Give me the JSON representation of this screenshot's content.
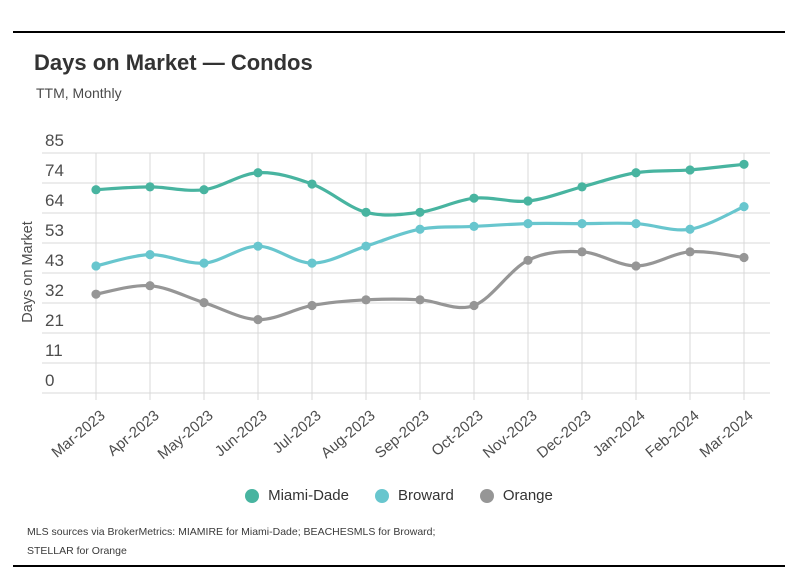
{
  "header": {
    "title": "Days on Market — Condos",
    "subtitle": "TTM, Monthly"
  },
  "chart_data": {
    "type": "line",
    "title": "Days on Market — Condos",
    "subtitle": "TTM, Monthly",
    "xlabel": "",
    "ylabel": "Days on Market",
    "ylim": [
      0,
      85
    ],
    "grid": true,
    "legend_position": "bottom-center",
    "y_tick_labels": [
      "0",
      "11",
      "21",
      "32",
      "43",
      "53",
      "64",
      "74",
      "85"
    ],
    "categories": [
      "Mar-2023",
      "Apr-2023",
      "May-2023",
      "Jun-2023",
      "Jul-2023",
      "Aug-2023",
      "Sep-2023",
      "Oct-2023",
      "Nov-2023",
      "Dec-2023",
      "Jan-2024",
      "Feb-2024",
      "Mar-2024"
    ],
    "series": [
      {
        "name": "Miami-Dade",
        "color": "#48b4a0",
        "values": [
          72,
          73,
          72,
          78,
          74,
          64,
          64,
          69,
          68,
          73,
          78,
          79,
          81
        ]
      },
      {
        "name": "Broward",
        "color": "#68c6ce",
        "values": [
          45,
          49,
          46,
          52,
          46,
          52,
          58,
          59,
          60,
          60,
          60,
          58,
          66
        ]
      },
      {
        "name": "Orange",
        "color": "#969696",
        "values": [
          35,
          38,
          32,
          26,
          31,
          33,
          33,
          31,
          47,
          50,
          45,
          50,
          48
        ]
      }
    ]
  },
  "footer": {
    "line1": "MLS sources via BrokerMetrics: MIAMIRE for Miami-Dade; BEACHESMLS for Broward;",
    "line2": "STELLAR for Orange"
  },
  "colors": {
    "rule": "#000000",
    "grid": "#d9d9d9",
    "axis_text": "#4d4d4d"
  }
}
